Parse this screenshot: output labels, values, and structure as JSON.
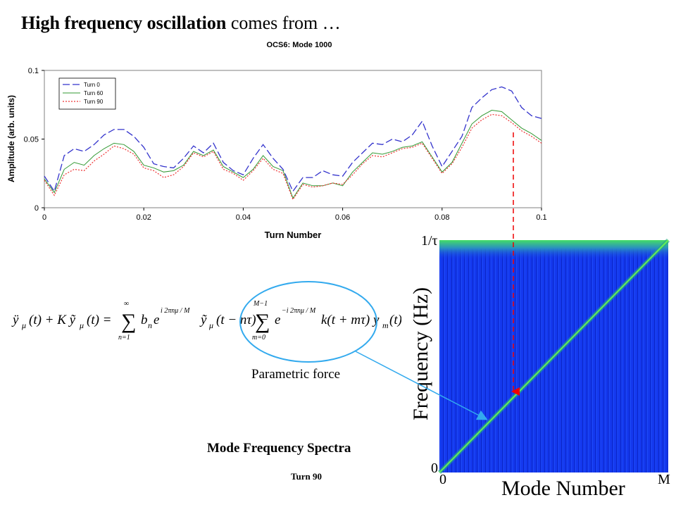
{
  "slide": {
    "title_bold": "High frequency oscillation",
    "title_rest": " comes from …",
    "parametric_label": "Parametric force",
    "spectra_title": "Mode Frequency Spectra",
    "turn_label": "Turn 90"
  },
  "spectrum": {
    "y_top_label": "1/τ",
    "y_zero_label": "0",
    "x_zero_label": "0",
    "x_end_label": "M",
    "xlabel": "Mode Number",
    "ylabel": "Frequency (Hz)",
    "background_color": "#1030e8",
    "line_color": "#55ee55"
  },
  "colors": {
    "turn0": "#3333cc",
    "turn60": "#339933",
    "turn90": "#ee3333",
    "arrow_red": "#ee0000",
    "arrow_cyan": "#33aaee",
    "ellipse": "#33aaee"
  },
  "chart_data": {
    "type": "line",
    "title": "OCS6: Mode 1000",
    "xlabel": "Turn Number",
    "ylabel": "Amplitude (arb. units)",
    "xlim": [
      0,
      0.1
    ],
    "ylim": [
      0,
      0.1
    ],
    "xticks": [
      "0",
      "0.02",
      "0.04",
      "0.06",
      "0.08",
      "0.1"
    ],
    "yticks": [
      "0",
      "0.05",
      "0.1"
    ],
    "legend_position": "top-left",
    "x": [
      0,
      0.002,
      0.004,
      0.006,
      0.008,
      0.01,
      0.012,
      0.014,
      0.016,
      0.018,
      0.02,
      0.022,
      0.024,
      0.026,
      0.028,
      0.03,
      0.032,
      0.034,
      0.036,
      0.038,
      0.04,
      0.042,
      0.044,
      0.046,
      0.048,
      0.05,
      0.052,
      0.054,
      0.056,
      0.058,
      0.06,
      0.062,
      0.064,
      0.066,
      0.068,
      0.07,
      0.072,
      0.074,
      0.076,
      0.078,
      0.08,
      0.082,
      0.084,
      0.086,
      0.088,
      0.09,
      0.092,
      0.094,
      0.096,
      0.098,
      0.1
    ],
    "series": [
      {
        "name": "Turn 0",
        "style": "dashed",
        "values": [
          0.023,
          0.012,
          0.038,
          0.043,
          0.041,
          0.046,
          0.053,
          0.057,
          0.057,
          0.052,
          0.044,
          0.032,
          0.03,
          0.029,
          0.036,
          0.045,
          0.04,
          0.047,
          0.033,
          0.027,
          0.024,
          0.036,
          0.046,
          0.036,
          0.028,
          0.012,
          0.022,
          0.022,
          0.027,
          0.024,
          0.023,
          0.033,
          0.04,
          0.047,
          0.046,
          0.05,
          0.048,
          0.053,
          0.063,
          0.045,
          0.03,
          0.041,
          0.052,
          0.073,
          0.08,
          0.086,
          0.088,
          0.085,
          0.073,
          0.067,
          0.065
        ]
      },
      {
        "name": "Turn 60",
        "style": "solid",
        "values": [
          0.021,
          0.011,
          0.028,
          0.033,
          0.031,
          0.038,
          0.043,
          0.047,
          0.046,
          0.041,
          0.031,
          0.029,
          0.026,
          0.027,
          0.031,
          0.041,
          0.038,
          0.042,
          0.03,
          0.026,
          0.022,
          0.028,
          0.038,
          0.03,
          0.027,
          0.007,
          0.018,
          0.016,
          0.016,
          0.018,
          0.016,
          0.026,
          0.033,
          0.04,
          0.039,
          0.041,
          0.044,
          0.045,
          0.048,
          0.037,
          0.026,
          0.033,
          0.047,
          0.061,
          0.067,
          0.071,
          0.07,
          0.064,
          0.058,
          0.054,
          0.049
        ]
      },
      {
        "name": "Turn 90",
        "style": "dotted",
        "values": [
          0.02,
          0.009,
          0.024,
          0.028,
          0.027,
          0.034,
          0.039,
          0.045,
          0.043,
          0.039,
          0.029,
          0.027,
          0.022,
          0.024,
          0.03,
          0.04,
          0.037,
          0.041,
          0.028,
          0.025,
          0.02,
          0.027,
          0.036,
          0.028,
          0.025,
          0.006,
          0.017,
          0.015,
          0.016,
          0.018,
          0.017,
          0.024,
          0.032,
          0.038,
          0.037,
          0.04,
          0.043,
          0.044,
          0.047,
          0.036,
          0.025,
          0.032,
          0.044,
          0.058,
          0.064,
          0.068,
          0.067,
          0.062,
          0.056,
          0.052,
          0.047
        ]
      }
    ]
  }
}
